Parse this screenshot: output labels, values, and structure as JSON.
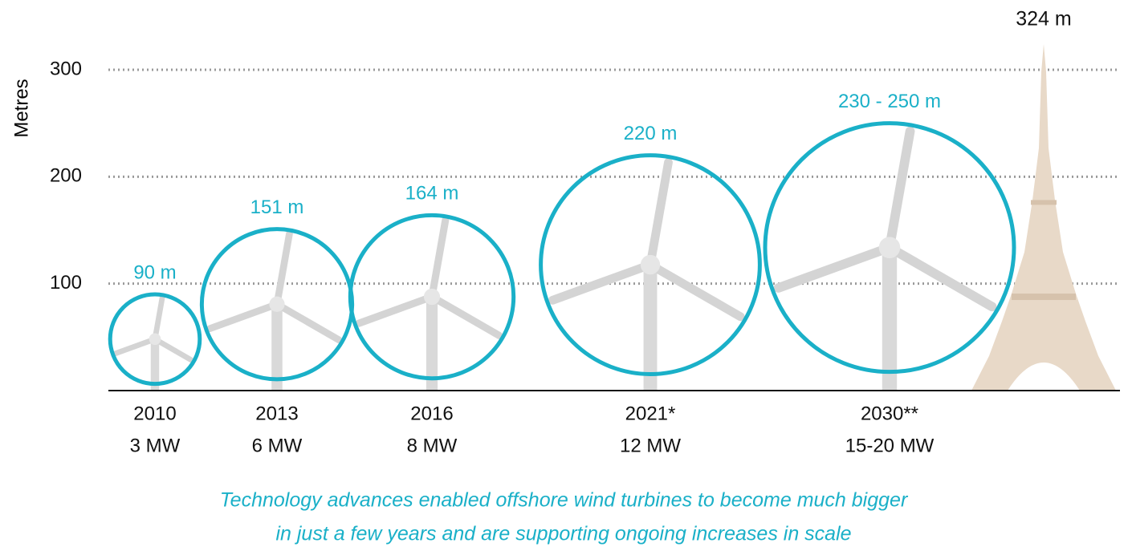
{
  "chart_data": {
    "type": "turbine",
    "y_label": "Metres",
    "categories": [
      "2010",
      "2013",
      "2016",
      "2021*",
      "2030**"
    ],
    "capacities": [
      "3 MW",
      "6 MW",
      "8 MW",
      "12 MW",
      "15-20 MW"
    ],
    "values": [
      90,
      151,
      164,
      220,
      250
    ],
    "value_labels": [
      "90 m",
      "151 m",
      "164 m",
      "220 m",
      "230 - 250 m"
    ],
    "color": "#1ab0c8",
    "ylim": [
      0,
      360
    ],
    "yticks": [
      100,
      200,
      300
    ],
    "grid": true,
    "landmark": {
      "value": 324,
      "label": "324 m",
      "color": "#e8d9c8"
    },
    "caption": [
      "Technology advances enabled offshore wind turbines to become much bigger",
      "in just a few years and are supporting ongoing increases in scale"
    ]
  }
}
